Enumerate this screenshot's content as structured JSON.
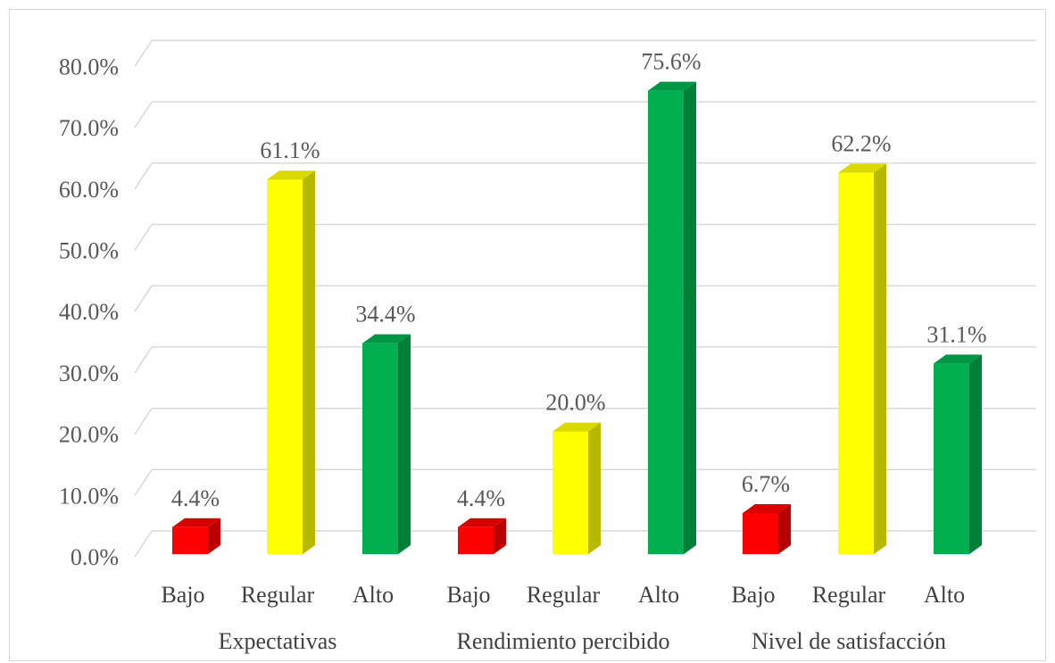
{
  "chart_data": {
    "type": "bar",
    "style": "3d-column",
    "ylim": [
      0,
      80
    ],
    "ytick_step": 10,
    "ytick_labels": [
      "0.0%",
      "10.0%",
      "20.0%",
      "30.0%",
      "40.0%",
      "50.0%",
      "60.0%",
      "70.0%",
      "80.0%"
    ],
    "grid": true,
    "legend": "none",
    "groups": [
      {
        "name": "Expectativas",
        "bars": [
          {
            "category": "Bajo",
            "value": 4.4,
            "label": "4.4%",
            "color": "#ff0000"
          },
          {
            "category": "Regular",
            "value": 61.1,
            "label": "61.1%",
            "color": "#ffff00"
          },
          {
            "category": "Alto",
            "value": 34.4,
            "label": "34.4%",
            "color": "#00b050"
          }
        ]
      },
      {
        "name": "Rendimiento percibido",
        "bars": [
          {
            "category": "Bajo",
            "value": 4.4,
            "label": "4.4%",
            "color": "#ff0000"
          },
          {
            "category": "Regular",
            "value": 20.0,
            "label": "20.0%",
            "color": "#ffff00"
          },
          {
            "category": "Alto",
            "value": 75.6,
            "label": "75.6%",
            "color": "#00b050"
          }
        ]
      },
      {
        "name": "Nivel de satisfacción",
        "bars": [
          {
            "category": "Bajo",
            "value": 6.7,
            "label": "6.7%",
            "color": "#ff0000"
          },
          {
            "category": "Regular",
            "value": 62.2,
            "label": "62.2%",
            "color": "#ffff00"
          },
          {
            "category": "Alto",
            "value": 31.1,
            "label": "31.1%",
            "color": "#00b050"
          }
        ]
      }
    ]
  }
}
